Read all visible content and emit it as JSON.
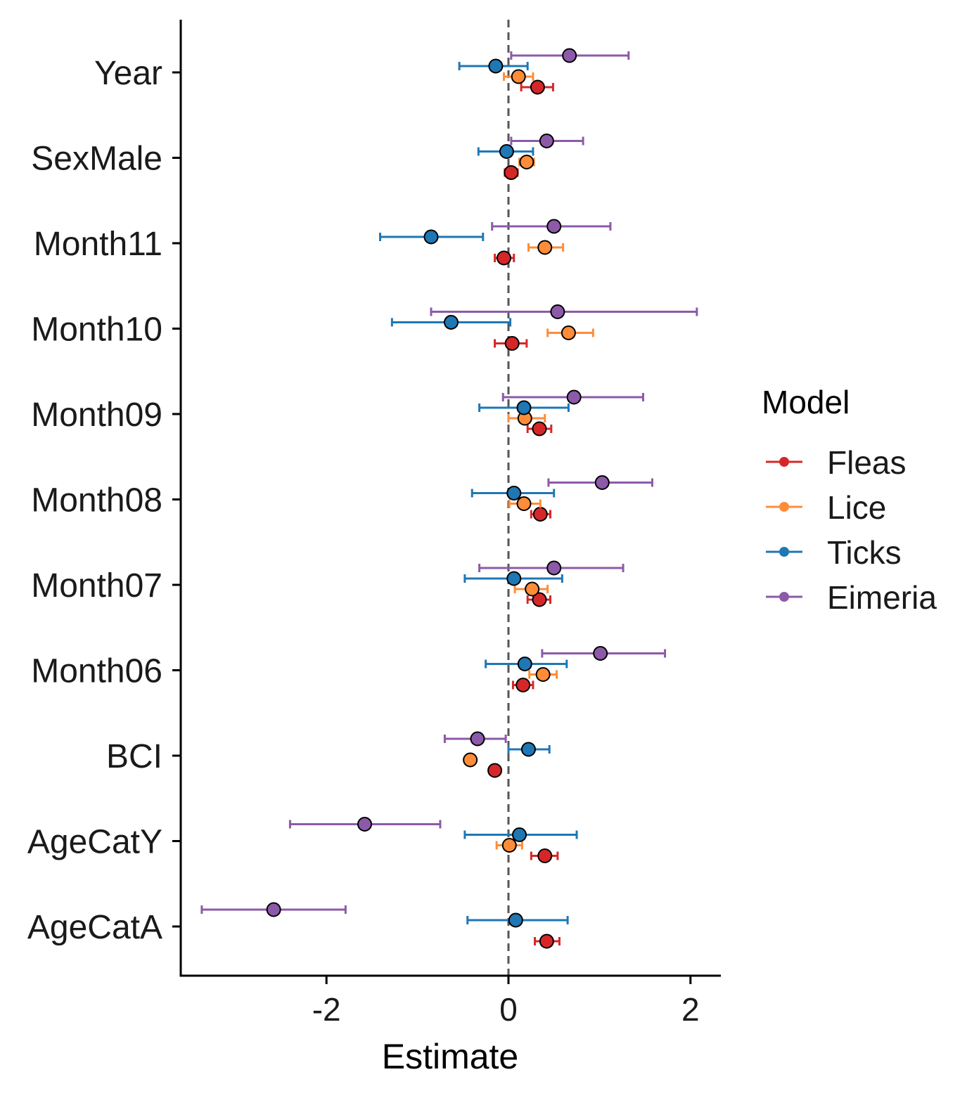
{
  "chart_data": {
    "type": "scatter",
    "xlabel": "Estimate",
    "ylabel": "",
    "xlim": [
      -3.6,
      2.35
    ],
    "xticks": [
      -2,
      0,
      2
    ],
    "reference_line_x": 0,
    "grid": false,
    "legend_title": "Model",
    "legend_position": "right",
    "categories": [
      "Year",
      "SexMale",
      "Month11",
      "Month10",
      "Month09",
      "Month08",
      "Month07",
      "Month06",
      "BCI",
      "AgeCatY",
      "AgeCatA"
    ],
    "series": [
      {
        "name": "Fleas",
        "color": "#d62728",
        "points": [
          {
            "category": "Year",
            "estimate": 0.32,
            "low": 0.14,
            "high": 0.49
          },
          {
            "category": "SexMale",
            "estimate": 0.03,
            "low": -0.04,
            "high": 0.1
          },
          {
            "category": "Month11",
            "estimate": -0.05,
            "low": -0.15,
            "high": 0.06
          },
          {
            "category": "Month10",
            "estimate": 0.04,
            "low": -0.15,
            "high": 0.2
          },
          {
            "category": "Month09",
            "estimate": 0.34,
            "low": 0.21,
            "high": 0.47
          },
          {
            "category": "Month08",
            "estimate": 0.35,
            "low": 0.25,
            "high": 0.46
          },
          {
            "category": "Month07",
            "estimate": 0.34,
            "low": 0.21,
            "high": 0.46
          },
          {
            "category": "Month06",
            "estimate": 0.16,
            "low": 0.05,
            "high": 0.27
          },
          {
            "category": "BCI",
            "estimate": -0.15,
            "low": -0.15,
            "high": -0.15
          },
          {
            "category": "AgeCatY",
            "estimate": 0.4,
            "low": 0.25,
            "high": 0.54
          },
          {
            "category": "AgeCatA",
            "estimate": 0.42,
            "low": 0.29,
            "high": 0.56
          }
        ]
      },
      {
        "name": "Lice",
        "color": "#ff8c38",
        "points": [
          {
            "category": "Year",
            "estimate": 0.11,
            "low": -0.05,
            "high": 0.27
          },
          {
            "category": "SexMale",
            "estimate": 0.2,
            "low": 0.12,
            "high": 0.28
          },
          {
            "category": "Month11",
            "estimate": 0.4,
            "low": 0.22,
            "high": 0.6
          },
          {
            "category": "Month10",
            "estimate": 0.66,
            "low": 0.43,
            "high": 0.93
          },
          {
            "category": "Month09",
            "estimate": 0.18,
            "low": 0.0,
            "high": 0.4
          },
          {
            "category": "Month08",
            "estimate": 0.17,
            "low": 0.01,
            "high": 0.35
          },
          {
            "category": "Month07",
            "estimate": 0.26,
            "low": 0.07,
            "high": 0.43
          },
          {
            "category": "Month06",
            "estimate": 0.38,
            "low": 0.23,
            "high": 0.53
          },
          {
            "category": "BCI",
            "estimate": -0.42,
            "low": -0.42,
            "high": -0.42
          },
          {
            "category": "AgeCatY",
            "estimate": 0.01,
            "low": -0.13,
            "high": 0.15
          }
        ]
      },
      {
        "name": "Ticks",
        "color": "#1f77b4",
        "points": [
          {
            "category": "Year",
            "estimate": -0.14,
            "low": -0.54,
            "high": 0.21
          },
          {
            "category": "SexMale",
            "estimate": -0.02,
            "low": -0.33,
            "high": 0.27
          },
          {
            "category": "Month11",
            "estimate": -0.85,
            "low": -1.41,
            "high": -0.28
          },
          {
            "category": "Month10",
            "estimate": -0.63,
            "low": -1.28,
            "high": 0.02
          },
          {
            "category": "Month09",
            "estimate": 0.17,
            "low": -0.32,
            "high": 0.66
          },
          {
            "category": "Month08",
            "estimate": 0.06,
            "low": -0.4,
            "high": 0.5
          },
          {
            "category": "Month07",
            "estimate": 0.06,
            "low": -0.48,
            "high": 0.59
          },
          {
            "category": "Month06",
            "estimate": 0.18,
            "low": -0.25,
            "high": 0.64
          },
          {
            "category": "BCI",
            "estimate": 0.22,
            "low": 0.0,
            "high": 0.45
          },
          {
            "category": "AgeCatY",
            "estimate": 0.12,
            "low": -0.48,
            "high": 0.75
          },
          {
            "category": "AgeCatA",
            "estimate": 0.08,
            "low": -0.45,
            "high": 0.65
          }
        ]
      },
      {
        "name": "Eimeria",
        "color": "#8c5aa8",
        "points": [
          {
            "category": "Year",
            "estimate": 0.67,
            "low": 0.03,
            "high": 1.32
          },
          {
            "category": "SexMale",
            "estimate": 0.42,
            "low": 0.03,
            "high": 0.82
          },
          {
            "category": "Month11",
            "estimate": 0.5,
            "low": -0.18,
            "high": 1.12
          },
          {
            "category": "Month10",
            "estimate": 0.54,
            "low": -0.85,
            "high": 2.07
          },
          {
            "category": "Month09",
            "estimate": 0.72,
            "low": -0.06,
            "high": 1.48
          },
          {
            "category": "Month08",
            "estimate": 1.03,
            "low": 0.44,
            "high": 1.58
          },
          {
            "category": "Month07",
            "estimate": 0.5,
            "low": -0.32,
            "high": 1.26
          },
          {
            "category": "Month06",
            "estimate": 1.01,
            "low": 0.37,
            "high": 1.72
          },
          {
            "category": "BCI",
            "estimate": -0.34,
            "low": -0.7,
            "high": -0.03
          },
          {
            "category": "AgeCatY",
            "estimate": -1.58,
            "low": -2.4,
            "high": -0.75
          },
          {
            "category": "AgeCatA",
            "estimate": -2.58,
            "low": -3.37,
            "high": -1.79
          }
        ]
      }
    ]
  }
}
